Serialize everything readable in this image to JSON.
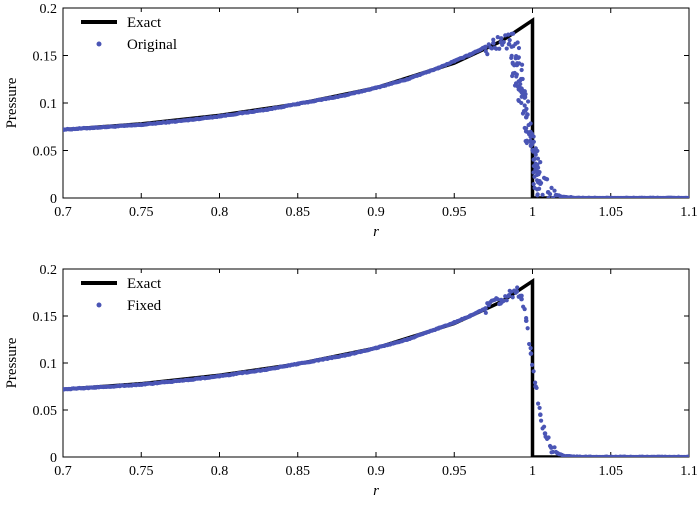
{
  "chart_data": [
    {
      "type": "line",
      "title": "",
      "xlabel": "r",
      "ylabel": "Pressure",
      "xlim": [
        0.7,
        1.1
      ],
      "ylim": [
        0,
        0.2
      ],
      "xticks": [
        "0.7",
        "0.75",
        "0.8",
        "0.85",
        "0.9",
        "0.95",
        "1",
        "1.05",
        "1.1"
      ],
      "yticks": [
        "0",
        "0.05",
        "0.1",
        "0.15",
        "0.2"
      ],
      "grid": false,
      "legend_position": "top-left",
      "series": [
        {
          "name": "Exact",
          "style": "line",
          "color": "#000000",
          "x": [
            0.7,
            0.75,
            0.8,
            0.85,
            0.9,
            0.95,
            0.98,
            1.0,
            1.0,
            1.1
          ],
          "y": [
            0.072,
            0.078,
            0.087,
            0.099,
            0.116,
            0.142,
            0.165,
            0.187,
            0.0,
            0.0
          ]
        },
        {
          "name": "Original",
          "style": "scatter",
          "color": "#4a55b5",
          "x": [
            0.7,
            0.72,
            0.75,
            0.78,
            0.8,
            0.83,
            0.85,
            0.88,
            0.9,
            0.92,
            0.94,
            0.95,
            0.96,
            0.97,
            0.975,
            0.98,
            0.985,
            0.99,
            0.993,
            0.996,
            0.999,
            1.002,
            1.005,
            1.01,
            1.015,
            1.02,
            1.03,
            1.05,
            1.07,
            1.1
          ],
          "y": [
            0.072,
            0.074,
            0.077,
            0.082,
            0.086,
            0.093,
            0.099,
            0.108,
            0.116,
            0.125,
            0.137,
            0.144,
            0.151,
            0.159,
            0.163,
            0.168,
            0.162,
            0.14,
            0.115,
            0.085,
            0.055,
            0.03,
            0.015,
            0.006,
            0.003,
            0.001,
            0.0,
            0.0,
            0.0,
            0.0
          ]
        }
      ]
    },
    {
      "type": "line",
      "title": "",
      "xlabel": "r",
      "ylabel": "Pressure",
      "xlim": [
        0.7,
        1.1
      ],
      "ylim": [
        0,
        0.2
      ],
      "xticks": [
        "0.7",
        "0.75",
        "0.8",
        "0.85",
        "0.9",
        "0.95",
        "1",
        "1.05",
        "1.1"
      ],
      "yticks": [
        "0",
        "0.05",
        "0.1",
        "0.15",
        "0.2"
      ],
      "grid": false,
      "legend_position": "top-left",
      "series": [
        {
          "name": "Exact",
          "style": "line",
          "color": "#000000",
          "x": [
            0.7,
            0.75,
            0.8,
            0.85,
            0.9,
            0.95,
            0.98,
            1.0,
            1.0,
            1.1
          ],
          "y": [
            0.072,
            0.078,
            0.087,
            0.099,
            0.116,
            0.142,
            0.165,
            0.187,
            0.0,
            0.0
          ]
        },
        {
          "name": "Fixed",
          "style": "scatter",
          "color": "#4a55b5",
          "x": [
            0.7,
            0.72,
            0.75,
            0.78,
            0.8,
            0.83,
            0.85,
            0.88,
            0.9,
            0.92,
            0.94,
            0.95,
            0.96,
            0.97,
            0.98,
            0.985,
            0.99,
            0.993,
            0.996,
            0.999,
            1.002,
            1.005,
            1.008,
            1.012,
            1.016,
            1.02,
            1.03,
            1.05,
            1.07,
            1.1
          ],
          "y": [
            0.072,
            0.074,
            0.077,
            0.082,
            0.086,
            0.093,
            0.099,
            0.108,
            0.116,
            0.125,
            0.137,
            0.143,
            0.15,
            0.158,
            0.167,
            0.172,
            0.176,
            0.168,
            0.145,
            0.11,
            0.075,
            0.045,
            0.025,
            0.01,
            0.004,
            0.001,
            0.0,
            0.0,
            0.0,
            0.0
          ]
        }
      ]
    }
  ]
}
